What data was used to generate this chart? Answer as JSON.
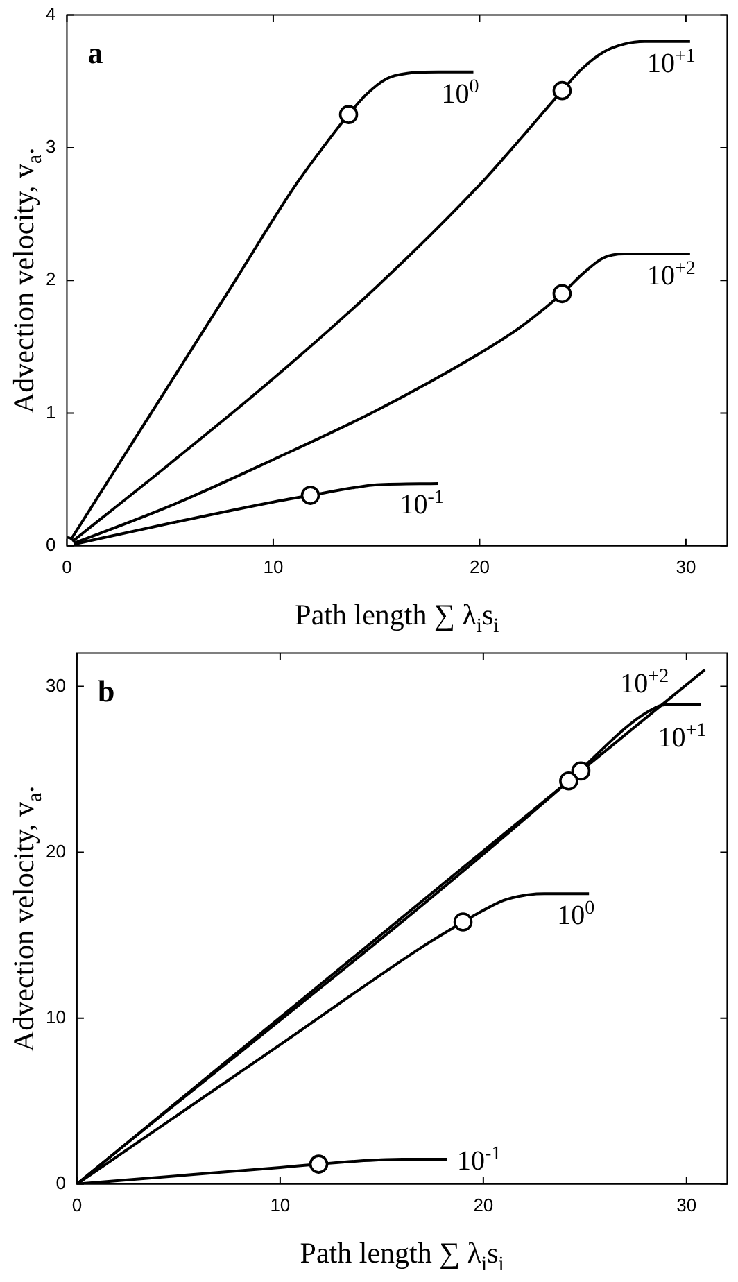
{
  "chart_data": [
    {
      "type": "line",
      "title": "a",
      "xlabel": "Path length ∑ λ$_{i}$s$_{i}$",
      "ylabel": "Advection velocity, v$_{a}$.",
      "xlim": [
        0,
        32
      ],
      "ylim": [
        0,
        4
      ],
      "xticks": [
        0,
        10,
        20,
        30
      ],
      "yticks": [
        0,
        1,
        2,
        3,
        4
      ],
      "grid": false,
      "legend": "right",
      "marker": "none",
      "series": [
        {
          "name": "10$^{0}$",
          "color": "#000000",
          "x": [
            0,
            4,
            8,
            11,
            12.5,
            13.65,
            14.5,
            15.5,
            16.5,
            18,
            19.7
          ],
          "values": [
            0,
            0.98,
            1.96,
            2.7,
            3.02,
            3.25,
            3.4,
            3.52,
            3.56,
            3.57,
            3.57
          ]
        },
        {
          "name": "10$^{+1}$",
          "color": "#000000",
          "x": [
            0,
            5,
            10,
            15,
            20,
            22,
            24,
            25,
            26,
            27,
            28,
            30.2
          ],
          "values": [
            0,
            0.62,
            1.26,
            1.95,
            2.72,
            3.07,
            3.43,
            3.6,
            3.72,
            3.78,
            3.8,
            3.8
          ]
        },
        {
          "name": "10$^{+2}$",
          "color": "#000000",
          "x": [
            0,
            5,
            10,
            15,
            20,
            22,
            24,
            25,
            26,
            27,
            30.2
          ],
          "values": [
            0,
            0.3,
            0.65,
            1.02,
            1.45,
            1.65,
            1.9,
            2.05,
            2.17,
            2.2,
            2.2
          ]
        },
        {
          "name": "10$^{-1}$",
          "color": "#000000",
          "x": [
            0,
            5,
            10,
            11.8,
            14,
            15,
            18
          ],
          "values": [
            0,
            0.17,
            0.33,
            0.38,
            0.44,
            0.46,
            0.47
          ]
        },
        {
          "type": "scatter",
          "marker": "circle",
          "color": "#000000",
          "x": [
            0,
            13.65,
            24,
            24,
            11.8
          ],
          "values": [
            0,
            3.25,
            3.43,
            1.9,
            0.38
          ]
        }
      ]
    },
    {
      "type": "line",
      "title": "b",
      "xlabel": "Path length ∑ λ$_{i}$s$_{i}$",
      "ylabel": "Advection velocity, v$_{a}$.",
      "xlim": [
        0,
        32
      ],
      "ylim": [
        0,
        32
      ],
      "xticks": [
        0,
        10,
        20,
        30
      ],
      "yticks": [
        0,
        10,
        20,
        30
      ],
      "grid": false,
      "legend": "right",
      "marker": "none",
      "series": [
        {
          "name": "10$^{+2}$",
          "color": "#000000",
          "x": [
            0,
            24.8,
            30.9
          ],
          "values": [
            0,
            24.9,
            31
          ]
        },
        {
          "name": "10$^{+1}$",
          "color": "#000000",
          "x": [
            0,
            24.2,
            27,
            28,
            29,
            30.7
          ],
          "values": [
            0,
            24.3,
            27.5,
            28.4,
            28.9,
            28.9
          ]
        },
        {
          "name": "10$^{0}$",
          "color": "#000000",
          "x": [
            0,
            10,
            17,
            19,
            20,
            21,
            22,
            23,
            25.2
          ],
          "values": [
            0,
            8.4,
            14.3,
            15.8,
            16.5,
            17.1,
            17.4,
            17.5,
            17.5
          ]
        },
        {
          "name": "10$^{-1}$",
          "color": "#000000",
          "x": [
            0,
            5,
            10,
            11.9,
            14,
            16,
            18.2
          ],
          "values": [
            0,
            0.5,
            1.0,
            1.2,
            1.4,
            1.5,
            1.5
          ]
        },
        {
          "type": "scatter",
          "marker": "circle",
          "color": "#000000",
          "x": [
            24.8,
            24.2,
            19,
            11.9
          ],
          "values": [
            24.9,
            24.3,
            15.8,
            1.2
          ]
        }
      ]
    }
  ]
}
